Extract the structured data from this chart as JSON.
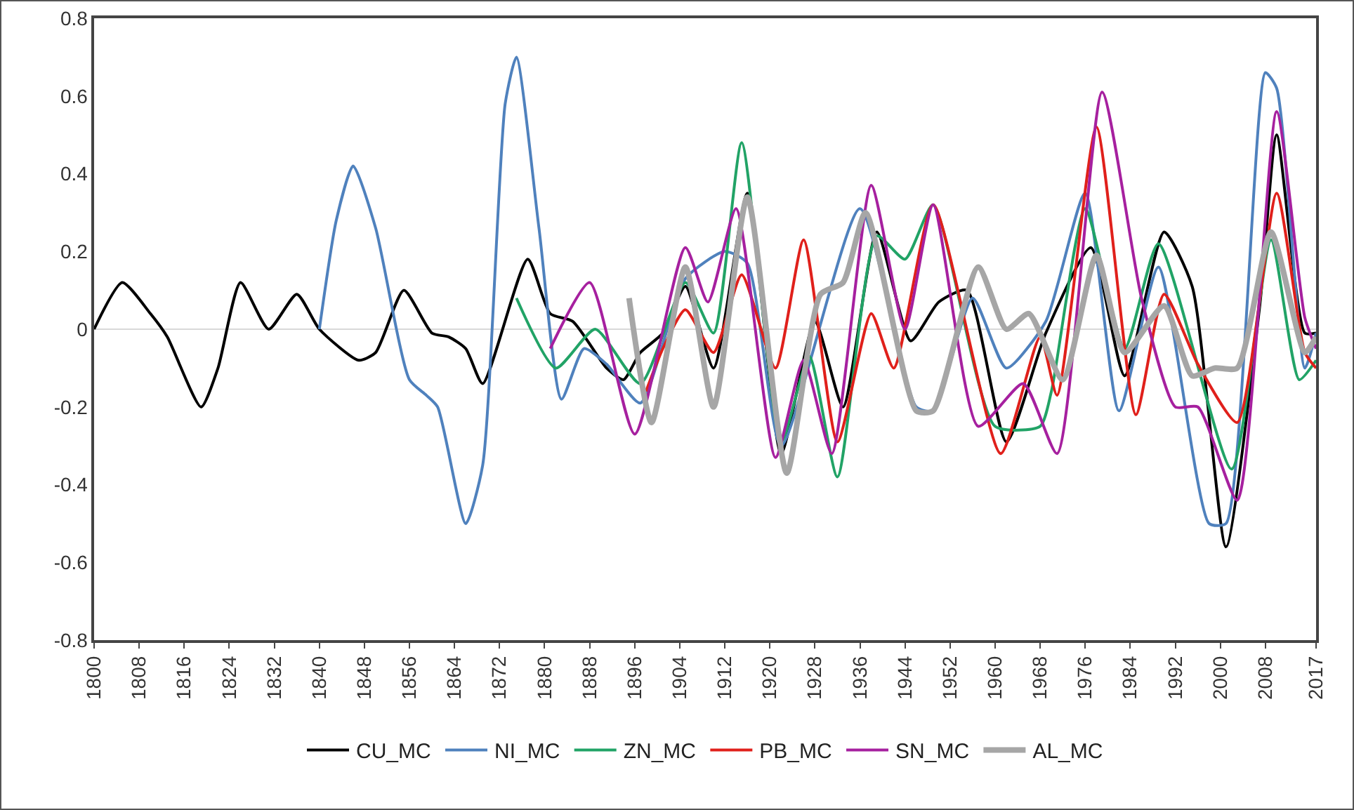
{
  "chart_data": {
    "type": "line",
    "xlim": [
      1800,
      2017
    ],
    "xticks": [
      1800,
      1808,
      1816,
      1824,
      1832,
      1840,
      1848,
      1856,
      1864,
      1872,
      1880,
      1888,
      1896,
      1904,
      1912,
      1920,
      1928,
      1936,
      1944,
      1952,
      1960,
      1968,
      1976,
      1984,
      1992,
      2000,
      2008,
      2017
    ],
    "ylim": [
      -0.8,
      0.8
    ],
    "yticks": [
      -0.8,
      -0.6,
      -0.4,
      -0.2,
      0,
      0.2,
      0.4,
      0.6,
      0.8
    ],
    "grid": false,
    "legend": "bottom",
    "marker": "none",
    "line_style": "solid",
    "ref_lines": [
      {
        "axis": "y",
        "value": 0,
        "color": "#d9d9d9"
      }
    ],
    "series": [
      {
        "name": "CU_MC",
        "color": "#000000",
        "x": [
          1800,
          1805,
          1810,
          1813,
          1819,
          1822,
          1826,
          1831,
          1836,
          1840,
          1847,
          1850,
          1855,
          1860,
          1863,
          1866,
          1869,
          1877,
          1881,
          1885,
          1891,
          1894,
          1897,
          1901,
          1905,
          1910,
          1916,
          1922,
          1928,
          1933,
          1939,
          1945,
          1950,
          1955,
          1962,
          1969,
          1977,
          1983,
          1990,
          1995,
          2001,
          2007,
          2010,
          2015,
          2017
        ],
        "values": [
          0,
          0.12,
          0.04,
          -0.02,
          -0.2,
          -0.1,
          0.12,
          0,
          0.09,
          0,
          -0.08,
          -0.06,
          0.1,
          -0.01,
          -0.02,
          -0.05,
          -0.14,
          0.18,
          0.04,
          0.02,
          -0.1,
          -0.13,
          -0.06,
          -0.01,
          0.11,
          -0.1,
          0.35,
          -0.32,
          0.02,
          -0.2,
          0.25,
          -0.03,
          0.07,
          0.1,
          -0.29,
          -0.01,
          0.21,
          -0.12,
          0.25,
          0.11,
          -0.56,
          0.06,
          0.5,
          -0.01,
          -0.01
        ]
      },
      {
        "name": "NI_MC",
        "color": "#4f81bd",
        "x": [
          1840,
          1843,
          1846,
          1850,
          1856,
          1859,
          1861,
          1866,
          1869,
          1873,
          1875,
          1879,
          1883,
          1887,
          1891,
          1897,
          1905,
          1912,
          1916,
          1922,
          1936,
          1946,
          1949,
          1956,
          1962,
          1969,
          1976,
          1982,
          1989,
          1998,
          2001,
          2008,
          2010,
          2015,
          2017
        ],
        "values": [
          0,
          0.28,
          0.42,
          0.26,
          -0.13,
          -0.17,
          -0.2,
          -0.5,
          -0.35,
          0.58,
          0.7,
          0.26,
          -0.18,
          -0.05,
          -0.09,
          -0.19,
          0.13,
          0.2,
          0.17,
          -0.3,
          0.31,
          -0.2,
          -0.21,
          0.08,
          -0.1,
          0.02,
          0.35,
          -0.21,
          0.16,
          -0.5,
          -0.5,
          0.66,
          0.62,
          -0.1,
          -0.01
        ]
      },
      {
        "name": "ZN_MC",
        "color": "#21a366",
        "x": [
          1875,
          1882,
          1889,
          1897,
          1905,
          1910,
          1915,
          1922,
          1927,
          1932,
          1939,
          1944,
          1949,
          1960,
          1968,
          1970,
          1976,
          1983,
          1989,
          2002,
          2009,
          2014,
          2017
        ],
        "values": [
          0.08,
          -0.1,
          0,
          -0.14,
          0.12,
          -0.01,
          0.48,
          -0.29,
          -0.07,
          -0.38,
          0.24,
          0.18,
          0.32,
          -0.25,
          -0.25,
          -0.16,
          0.31,
          -0.05,
          0.22,
          -0.36,
          0.23,
          -0.13,
          -0.08
        ]
      },
      {
        "name": "PB_MC",
        "color": "#e0201b",
        "x": [
          1898,
          1901,
          1905,
          1910,
          1915,
          1921,
          1926,
          1932,
          1938,
          1942,
          1949,
          1961,
          1968,
          1971,
          1978,
          1985,
          1990,
          1996,
          2003,
          2010,
          2015,
          2017
        ],
        "values": [
          -0.16,
          -0.05,
          0.05,
          -0.06,
          0.14,
          -0.1,
          0.23,
          -0.29,
          0.04,
          -0.1,
          0.32,
          -0.32,
          -0.02,
          -0.17,
          0.52,
          -0.22,
          0.09,
          -0.09,
          -0.24,
          0.35,
          -0.06,
          -0.1
        ]
      },
      {
        "name": "SN_MC",
        "color": "#a6209f",
        "x": [
          1881,
          1888,
          1896,
          1905,
          1909,
          1914,
          1921,
          1926,
          1931,
          1938,
          1944,
          1949,
          1957,
          1965,
          1971,
          1979,
          1986,
          1992,
          1996,
          2003,
          2010,
          2015,
          2017
        ],
        "values": [
          -0.05,
          0.12,
          -0.27,
          0.21,
          0.07,
          0.31,
          -0.33,
          -0.08,
          -0.32,
          0.37,
          0,
          0.32,
          -0.25,
          -0.14,
          -0.32,
          0.61,
          0.08,
          -0.2,
          -0.2,
          -0.44,
          0.56,
          0.03,
          -0.05
        ]
      },
      {
        "name": "AL_MC",
        "color": "#a6a6a6",
        "x": [
          1895,
          1899,
          1905,
          1910,
          1916,
          1923,
          1929,
          1933,
          1937,
          1946,
          1949,
          1957,
          1962,
          1966,
          1972,
          1978,
          1983,
          1990,
          1995,
          1999,
          2003,
          2009,
          2015,
          2017
        ],
        "values": [
          0.08,
          -0.24,
          0.16,
          -0.2,
          0.34,
          -0.37,
          0.09,
          0.12,
          0.3,
          -0.21,
          -0.21,
          0.16,
          0,
          0.04,
          -0.13,
          0.19,
          -0.06,
          0.06,
          -0.12,
          -0.1,
          -0.1,
          0.25,
          -0.06,
          -0.02
        ]
      }
    ]
  }
}
